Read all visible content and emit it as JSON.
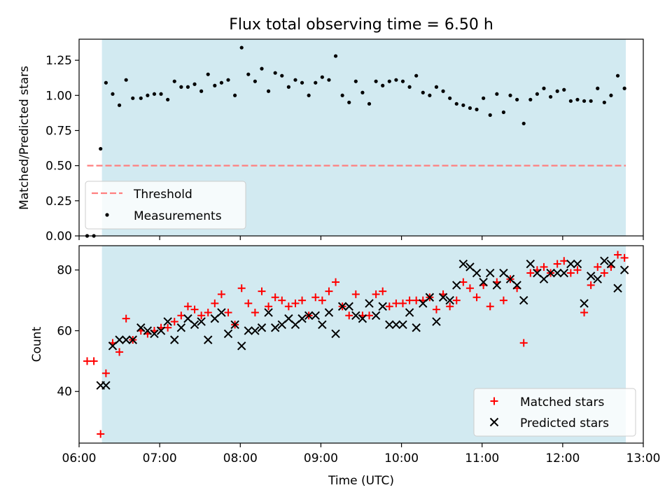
{
  "title": "Flux total observing time = 6.50 h",
  "colors": {
    "observing_band": "#add8e6",
    "threshold": "#ff7f7f",
    "measurements": "#000000",
    "matched": "#ff0000",
    "predicted": "#000000"
  },
  "chart_data": [
    {
      "type": "scatter",
      "title": "Flux total observing time = 6.50 h",
      "xlabel": "",
      "ylabel": "Matched/Predicted stars",
      "xlim": [
        "06:00",
        "13:00"
      ],
      "ylim": [
        0,
        1.4
      ],
      "yticks": [
        "0.00",
        "0.25",
        "0.50",
        "0.75",
        "1.00",
        "1.25"
      ],
      "observing_window": [
        "06:17",
        "12:47"
      ],
      "legend": {
        "position": "lower-left",
        "entries": [
          "Threshold",
          "Measurements"
        ]
      },
      "threshold": {
        "name": "Threshold",
        "value": 0.5,
        "x": [
          "06:06",
          "12:47"
        ],
        "style": "dashed"
      },
      "series": [
        {
          "name": "Measurements",
          "marker": "dot",
          "points": [
            [
              "06:06",
              0.0
            ],
            [
              "06:11",
              0.0
            ],
            [
              "06:16",
              0.62
            ],
            [
              "06:20",
              1.09
            ],
            [
              "06:25",
              1.01
            ],
            [
              "06:30",
              0.93
            ],
            [
              "06:35",
              1.11
            ],
            [
              "06:40",
              0.98
            ],
            [
              "06:46",
              0.98
            ],
            [
              "06:51",
              1.0
            ],
            [
              "06:56",
              1.01
            ],
            [
              "07:01",
              1.01
            ],
            [
              "07:06",
              0.97
            ],
            [
              "07:11",
              1.1
            ],
            [
              "07:16",
              1.06
            ],
            [
              "07:21",
              1.06
            ],
            [
              "07:26",
              1.08
            ],
            [
              "07:31",
              1.03
            ],
            [
              "07:36",
              1.15
            ],
            [
              "07:41",
              1.07
            ],
            [
              "07:46",
              1.09
            ],
            [
              "07:51",
              1.11
            ],
            [
              "07:56",
              1.0
            ],
            [
              "08:01",
              1.34
            ],
            [
              "08:06",
              1.15
            ],
            [
              "08:11",
              1.1
            ],
            [
              "08:16",
              1.19
            ],
            [
              "08:21",
              1.03
            ],
            [
              "08:26",
              1.16
            ],
            [
              "08:31",
              1.14
            ],
            [
              "08:36",
              1.06
            ],
            [
              "08:41",
              1.11
            ],
            [
              "08:46",
              1.09
            ],
            [
              "08:51",
              1.0
            ],
            [
              "08:56",
              1.09
            ],
            [
              "09:01",
              1.13
            ],
            [
              "09:06",
              1.11
            ],
            [
              "09:11",
              1.28
            ],
            [
              "09:16",
              1.0
            ],
            [
              "09:21",
              0.95
            ],
            [
              "09:26",
              1.1
            ],
            [
              "09:31",
              1.02
            ],
            [
              "09:36",
              0.94
            ],
            [
              "09:41",
              1.1
            ],
            [
              "09:46",
              1.07
            ],
            [
              "09:51",
              1.1
            ],
            [
              "09:56",
              1.11
            ],
            [
              "10:01",
              1.1
            ],
            [
              "10:06",
              1.06
            ],
            [
              "10:11",
              1.14
            ],
            [
              "10:16",
              1.02
            ],
            [
              "10:21",
              1.0
            ],
            [
              "10:26",
              1.06
            ],
            [
              "10:31",
              1.03
            ],
            [
              "10:36",
              0.98
            ],
            [
              "10:41",
              0.94
            ],
            [
              "10:46",
              0.93
            ],
            [
              "10:51",
              0.91
            ],
            [
              "10:56",
              0.9
            ],
            [
              "11:01",
              0.98
            ],
            [
              "11:06",
              0.86
            ],
            [
              "11:11",
              1.01
            ],
            [
              "11:16",
              0.88
            ],
            [
              "11:21",
              1.0
            ],
            [
              "11:26",
              0.97
            ],
            [
              "11:31",
              0.8
            ],
            [
              "11:36",
              0.97
            ],
            [
              "11:41",
              1.01
            ],
            [
              "11:46",
              1.05
            ],
            [
              "11:51",
              0.99
            ],
            [
              "11:56",
              1.03
            ],
            [
              "12:01",
              1.04
            ],
            [
              "12:06",
              0.96
            ],
            [
              "12:11",
              0.97
            ],
            [
              "12:16",
              0.96
            ],
            [
              "12:21",
              0.96
            ],
            [
              "12:26",
              1.05
            ],
            [
              "12:31",
              0.95
            ],
            [
              "12:36",
              1.0
            ],
            [
              "12:41",
              1.14
            ],
            [
              "12:46",
              1.05
            ]
          ]
        }
      ]
    },
    {
      "type": "scatter",
      "title": "",
      "xlabel": "Time (UTC)",
      "ylabel": "Count",
      "xlim": [
        "06:00",
        "13:00"
      ],
      "ylim": [
        23,
        88
      ],
      "yticks": [
        "40",
        "60",
        "80"
      ],
      "xticks": [
        "06:00",
        "07:00",
        "08:00",
        "09:00",
        "10:00",
        "11:00",
        "12:00",
        "13:00"
      ],
      "observing_window": [
        "06:17",
        "12:47"
      ],
      "legend": {
        "position": "lower-right",
        "entries": [
          "Matched stars",
          "Predicted stars"
        ]
      },
      "series": [
        {
          "name": "Matched stars",
          "marker": "plus",
          "points": [
            [
              "06:06",
              50
            ],
            [
              "06:11",
              50
            ],
            [
              "06:16",
              26
            ],
            [
              "06:20",
              46
            ],
            [
              "06:25",
              56
            ],
            [
              "06:30",
              53
            ],
            [
              "06:35",
              64
            ],
            [
              "06:40",
              57
            ],
            [
              "06:46",
              60
            ],
            [
              "06:51",
              59
            ],
            [
              "06:56",
              60
            ],
            [
              "07:01",
              61
            ],
            [
              "07:06",
              61
            ],
            [
              "07:11",
              63
            ],
            [
              "07:16",
              65
            ],
            [
              "07:21",
              68
            ],
            [
              "07:26",
              67
            ],
            [
              "07:31",
              65
            ],
            [
              "07:36",
              66
            ],
            [
              "07:41",
              69
            ],
            [
              "07:46",
              72
            ],
            [
              "07:51",
              66
            ],
            [
              "07:56",
              62
            ],
            [
              "08:01",
              74
            ],
            [
              "08:06",
              69
            ],
            [
              "08:11",
              66
            ],
            [
              "08:16",
              73
            ],
            [
              "08:21",
              68
            ],
            [
              "08:26",
              71
            ],
            [
              "08:31",
              70
            ],
            [
              "08:36",
              68
            ],
            [
              "08:41",
              69
            ],
            [
              "08:46",
              70
            ],
            [
              "08:51",
              65
            ],
            [
              "08:56",
              71
            ],
            [
              "09:01",
              70
            ],
            [
              "09:06",
              73
            ],
            [
              "09:11",
              76
            ],
            [
              "09:16",
              68
            ],
            [
              "09:21",
              65
            ],
            [
              "09:26",
              72
            ],
            [
              "09:31",
              65
            ],
            [
              "09:36",
              65
            ],
            [
              "09:41",
              72
            ],
            [
              "09:46",
              73
            ],
            [
              "09:51",
              68
            ],
            [
              "09:56",
              69
            ],
            [
              "10:01",
              69
            ],
            [
              "10:06",
              70
            ],
            [
              "10:11",
              70
            ],
            [
              "10:16",
              70
            ],
            [
              "10:21",
              71
            ],
            [
              "10:26",
              67
            ],
            [
              "10:31",
              72
            ],
            [
              "10:36",
              68
            ],
            [
              "10:41",
              70
            ],
            [
              "10:46",
              76
            ],
            [
              "10:51",
              74
            ],
            [
              "10:56",
              71
            ],
            [
              "11:01",
              75
            ],
            [
              "11:06",
              68
            ],
            [
              "11:11",
              76
            ],
            [
              "11:16",
              70
            ],
            [
              "11:21",
              77
            ],
            [
              "11:26",
              74
            ],
            [
              "11:31",
              56
            ],
            [
              "11:36",
              79
            ],
            [
              "11:41",
              80
            ],
            [
              "11:46",
              81
            ],
            [
              "11:51",
              79
            ],
            [
              "11:56",
              82
            ],
            [
              "12:01",
              83
            ],
            [
              "12:06",
              79
            ],
            [
              "12:11",
              80
            ],
            [
              "12:16",
              66
            ],
            [
              "12:21",
              75
            ],
            [
              "12:26",
              81
            ],
            [
              "12:31",
              79
            ],
            [
              "12:36",
              81
            ],
            [
              "12:41",
              85
            ],
            [
              "12:46",
              84
            ]
          ]
        },
        {
          "name": "Predicted stars",
          "marker": "x",
          "points": [
            [
              "06:16",
              42
            ],
            [
              "06:20",
              42
            ],
            [
              "06:25",
              55
            ],
            [
              "06:30",
              57
            ],
            [
              "06:35",
              57
            ],
            [
              "06:40",
              57
            ],
            [
              "06:46",
              61
            ],
            [
              "06:51",
              60
            ],
            [
              "06:56",
              59
            ],
            [
              "07:01",
              60
            ],
            [
              "07:06",
              63
            ],
            [
              "07:11",
              57
            ],
            [
              "07:16",
              61
            ],
            [
              "07:21",
              64
            ],
            [
              "07:26",
              62
            ],
            [
              "07:31",
              63
            ],
            [
              "07:36",
              57
            ],
            [
              "07:41",
              64
            ],
            [
              "07:46",
              66
            ],
            [
              "07:51",
              59
            ],
            [
              "07:56",
              62
            ],
            [
              "08:01",
              55
            ],
            [
              "08:06",
              60
            ],
            [
              "08:11",
              60
            ],
            [
              "08:16",
              61
            ],
            [
              "08:21",
              66
            ],
            [
              "08:26",
              61
            ],
            [
              "08:31",
              62
            ],
            [
              "08:36",
              64
            ],
            [
              "08:41",
              62
            ],
            [
              "08:46",
              64
            ],
            [
              "08:51",
              65
            ],
            [
              "08:56",
              65
            ],
            [
              "09:01",
              62
            ],
            [
              "09:06",
              66
            ],
            [
              "09:11",
              59
            ],
            [
              "09:16",
              68
            ],
            [
              "09:21",
              68
            ],
            [
              "09:26",
              65
            ],
            [
              "09:31",
              64
            ],
            [
              "09:36",
              69
            ],
            [
              "09:41",
              65
            ],
            [
              "09:46",
              68
            ],
            [
              "09:51",
              62
            ],
            [
              "09:56",
              62
            ],
            [
              "10:01",
              62
            ],
            [
              "10:06",
              66
            ],
            [
              "10:11",
              61
            ],
            [
              "10:16",
              69
            ],
            [
              "10:21",
              71
            ],
            [
              "10:26",
              63
            ],
            [
              "10:31",
              71
            ],
            [
              "10:36",
              70
            ],
            [
              "10:41",
              75
            ],
            [
              "10:46",
              82
            ],
            [
              "10:51",
              81
            ],
            [
              "10:56",
              79
            ],
            [
              "11:01",
              76
            ],
            [
              "11:06",
              79
            ],
            [
              "11:11",
              75
            ],
            [
              "11:16",
              79
            ],
            [
              "11:21",
              77
            ],
            [
              "11:26",
              75
            ],
            [
              "11:31",
              70
            ],
            [
              "11:36",
              82
            ],
            [
              "11:41",
              79
            ],
            [
              "11:46",
              77
            ],
            [
              "11:51",
              79
            ],
            [
              "11:56",
              79
            ],
            [
              "12:01",
              79
            ],
            [
              "12:06",
              82
            ],
            [
              "12:11",
              82
            ],
            [
              "12:16",
              69
            ],
            [
              "12:21",
              78
            ],
            [
              "12:26",
              77
            ],
            [
              "12:31",
              83
            ],
            [
              "12:36",
              82
            ],
            [
              "12:41",
              74
            ],
            [
              "12:46",
              80
            ]
          ]
        }
      ]
    }
  ]
}
